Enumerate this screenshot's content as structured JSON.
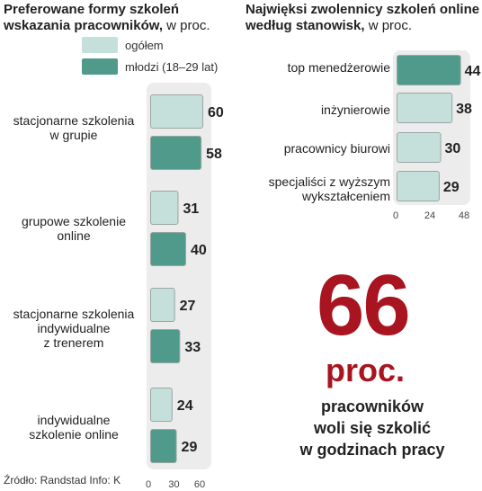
{
  "left_chart": {
    "title_bold_1": "Preferowane formy szkoleń",
    "title_bold_2": "wskazania pracowników,",
    "title_light": " w proc.",
    "legend": [
      {
        "label": "ogółem",
        "color": "#c5e0db"
      },
      {
        "label": "młodzi (18–29 lat)",
        "color": "#4f9a8b"
      }
    ],
    "source": "Źródło: Randstad  Info: K"
  },
  "right_chart": {
    "title_bold_1": "Najwięksi zwolennicy szkoleń online",
    "title_bold_2": "według stanowisk,",
    "title_light": " w proc."
  },
  "chart_data": [
    {
      "type": "bar",
      "title": "Preferowane formy szkoleń wskazania pracowników, w proc.",
      "categories": [
        "stacjonarne szkolenia w grupie",
        "grupowe szkolenie online",
        "stacjonarne szkolenia indywidualne z trenerem",
        "indywidualne szkolenie online"
      ],
      "category_lines": [
        [
          "stacjonarne szkolenia",
          "w grupie"
        ],
        [
          "grupowe szkolenie",
          "online"
        ],
        [
          "stacjonarne szkolenia",
          "indywidualne",
          "z trenerem"
        ],
        [
          "indywidualne",
          "szkolenie online"
        ]
      ],
      "series": [
        {
          "name": "ogółem",
          "values": [
            60,
            31,
            27,
            24
          ],
          "color": "#c5e0db"
        },
        {
          "name": "młodzi (18–29 lat)",
          "values": [
            58,
            40,
            33,
            29
          ],
          "color": "#4f9a8b"
        }
      ],
      "xlim": [
        0,
        60
      ],
      "xticks": [
        0,
        30,
        60
      ],
      "orientation": "horizontal"
    },
    {
      "type": "bar",
      "title": "Najwięksi zwolennicy szkoleń online według stanowisk, w proc.",
      "categories": [
        "top menedżerowie",
        "inżynierowie",
        "pracownicy biurowi",
        "specjaliści z wyższym wykształceniem"
      ],
      "category_lines": [
        [
          "top menedżerowie"
        ],
        [
          "inżynierowie"
        ],
        [
          "pracownicy biurowi"
        ],
        [
          "specjaliści z wyższym",
          "wykształceniem"
        ]
      ],
      "values": [
        44,
        38,
        30,
        29
      ],
      "highlight_index": 0,
      "colors": {
        "highlight": "#4f9a8b",
        "normal": "#c5e0db"
      },
      "xlim": [
        0,
        48
      ],
      "xticks": [
        0,
        24,
        48
      ],
      "orientation": "horizontal"
    }
  ],
  "callout": {
    "number": "66",
    "unit": "proc.",
    "text_lines": [
      "pracowników",
      "woli się szkolić",
      "w godzinach pracy"
    ]
  }
}
